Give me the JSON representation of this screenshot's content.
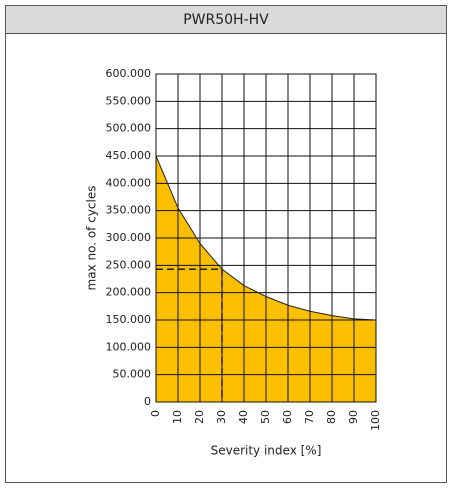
{
  "chart_data": {
    "type": "area",
    "title": "PWR50H-HV",
    "x_label": "Severity index [%]",
    "y_label": "max no. of cycles",
    "x": [
      0,
      10,
      20,
      30,
      40,
      50,
      60,
      70,
      80,
      90,
      100
    ],
    "values": [
      450000,
      355000,
      290000,
      243000,
      213000,
      193000,
      177000,
      166000,
      158000,
      152000,
      150000
    ],
    "color": "#fcbf00",
    "reference": {
      "x": 30,
      "y": 243000
    },
    "xlim": [
      0,
      100
    ],
    "xticks": [
      0,
      10,
      20,
      30,
      40,
      50,
      60,
      70,
      80,
      90,
      100
    ],
    "ylim": [
      0,
      600000
    ],
    "yticks": [
      0,
      {
        "value": 50000,
        "label": "50.000"
      },
      {
        "value": 100000,
        "label": "100.000"
      },
      {
        "value": 150000,
        "label": "150.000"
      },
      {
        "value": 200000,
        "label": "200.000"
      },
      {
        "value": 250000,
        "label": "250.000"
      },
      {
        "value": 300000,
        "label": "300.000"
      },
      {
        "value": 350000,
        "label": "350.000"
      },
      {
        "value": 400000,
        "label": "400.000"
      },
      {
        "value": 450000,
        "label": "450.000"
      },
      {
        "value": 500000,
        "label": "500.000"
      },
      {
        "value": 550000,
        "label": "550.000"
      },
      {
        "value": 600000,
        "label": "600.000"
      }
    ],
    "grid": true
  }
}
